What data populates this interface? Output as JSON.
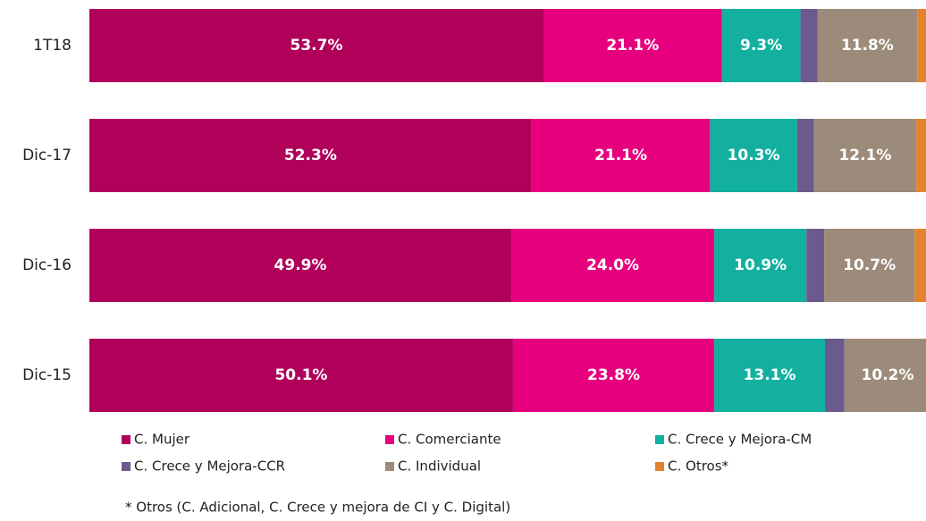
{
  "chart_data": {
    "type": "stacked-bar-horizontal",
    "categories": [
      "1T18",
      "Dic-17",
      "Dic-16",
      "Dic-15"
    ],
    "xlim": [
      0,
      100
    ],
    "series": [
      {
        "name": "C. Mujer",
        "color": "#b0005a",
        "values": [
          53.7,
          52.3,
          49.9,
          50.1
        ],
        "value_labels": [
          "53.7%",
          "52.3%",
          "49.9%",
          "50.1%"
        ]
      },
      {
        "name": "C. Comerciante",
        "color": "#e6007e",
        "values": [
          21.1,
          21.1,
          24.0,
          23.8
        ],
        "value_labels": [
          "21.1%",
          "21.1%",
          "24.0%",
          "23.8%"
        ]
      },
      {
        "name": "C. Crece y Mejora-CM",
        "color": "#13b0a0",
        "values": [
          9.3,
          10.3,
          10.9,
          13.1
        ],
        "value_labels": [
          "9.3%",
          "10.3%",
          "10.9%",
          "13.1%"
        ]
      },
      {
        "name": "C. Crece y Mejora-CCR",
        "color": "#6b5a8e",
        "values": [
          2.0,
          2.0,
          2.1,
          2.3
        ],
        "value_labels": [
          null,
          null,
          null,
          null
        ]
      },
      {
        "name": "C. Individual",
        "color": "#9c8b7a",
        "values": [
          11.8,
          12.1,
          10.7,
          10.2
        ],
        "value_labels": [
          "11.8%",
          "12.1%",
          "10.7%",
          "10.2%"
        ]
      },
      {
        "name": "C. Otros*",
        "color": "#e3832e",
        "values": [
          2.1,
          2.2,
          2.4,
          0.5
        ],
        "value_labels": [
          null,
          null,
          null,
          null
        ]
      }
    ],
    "note": "* Otros (C. Adicional, C. Crece y mejora de CI y C. Digital)"
  }
}
